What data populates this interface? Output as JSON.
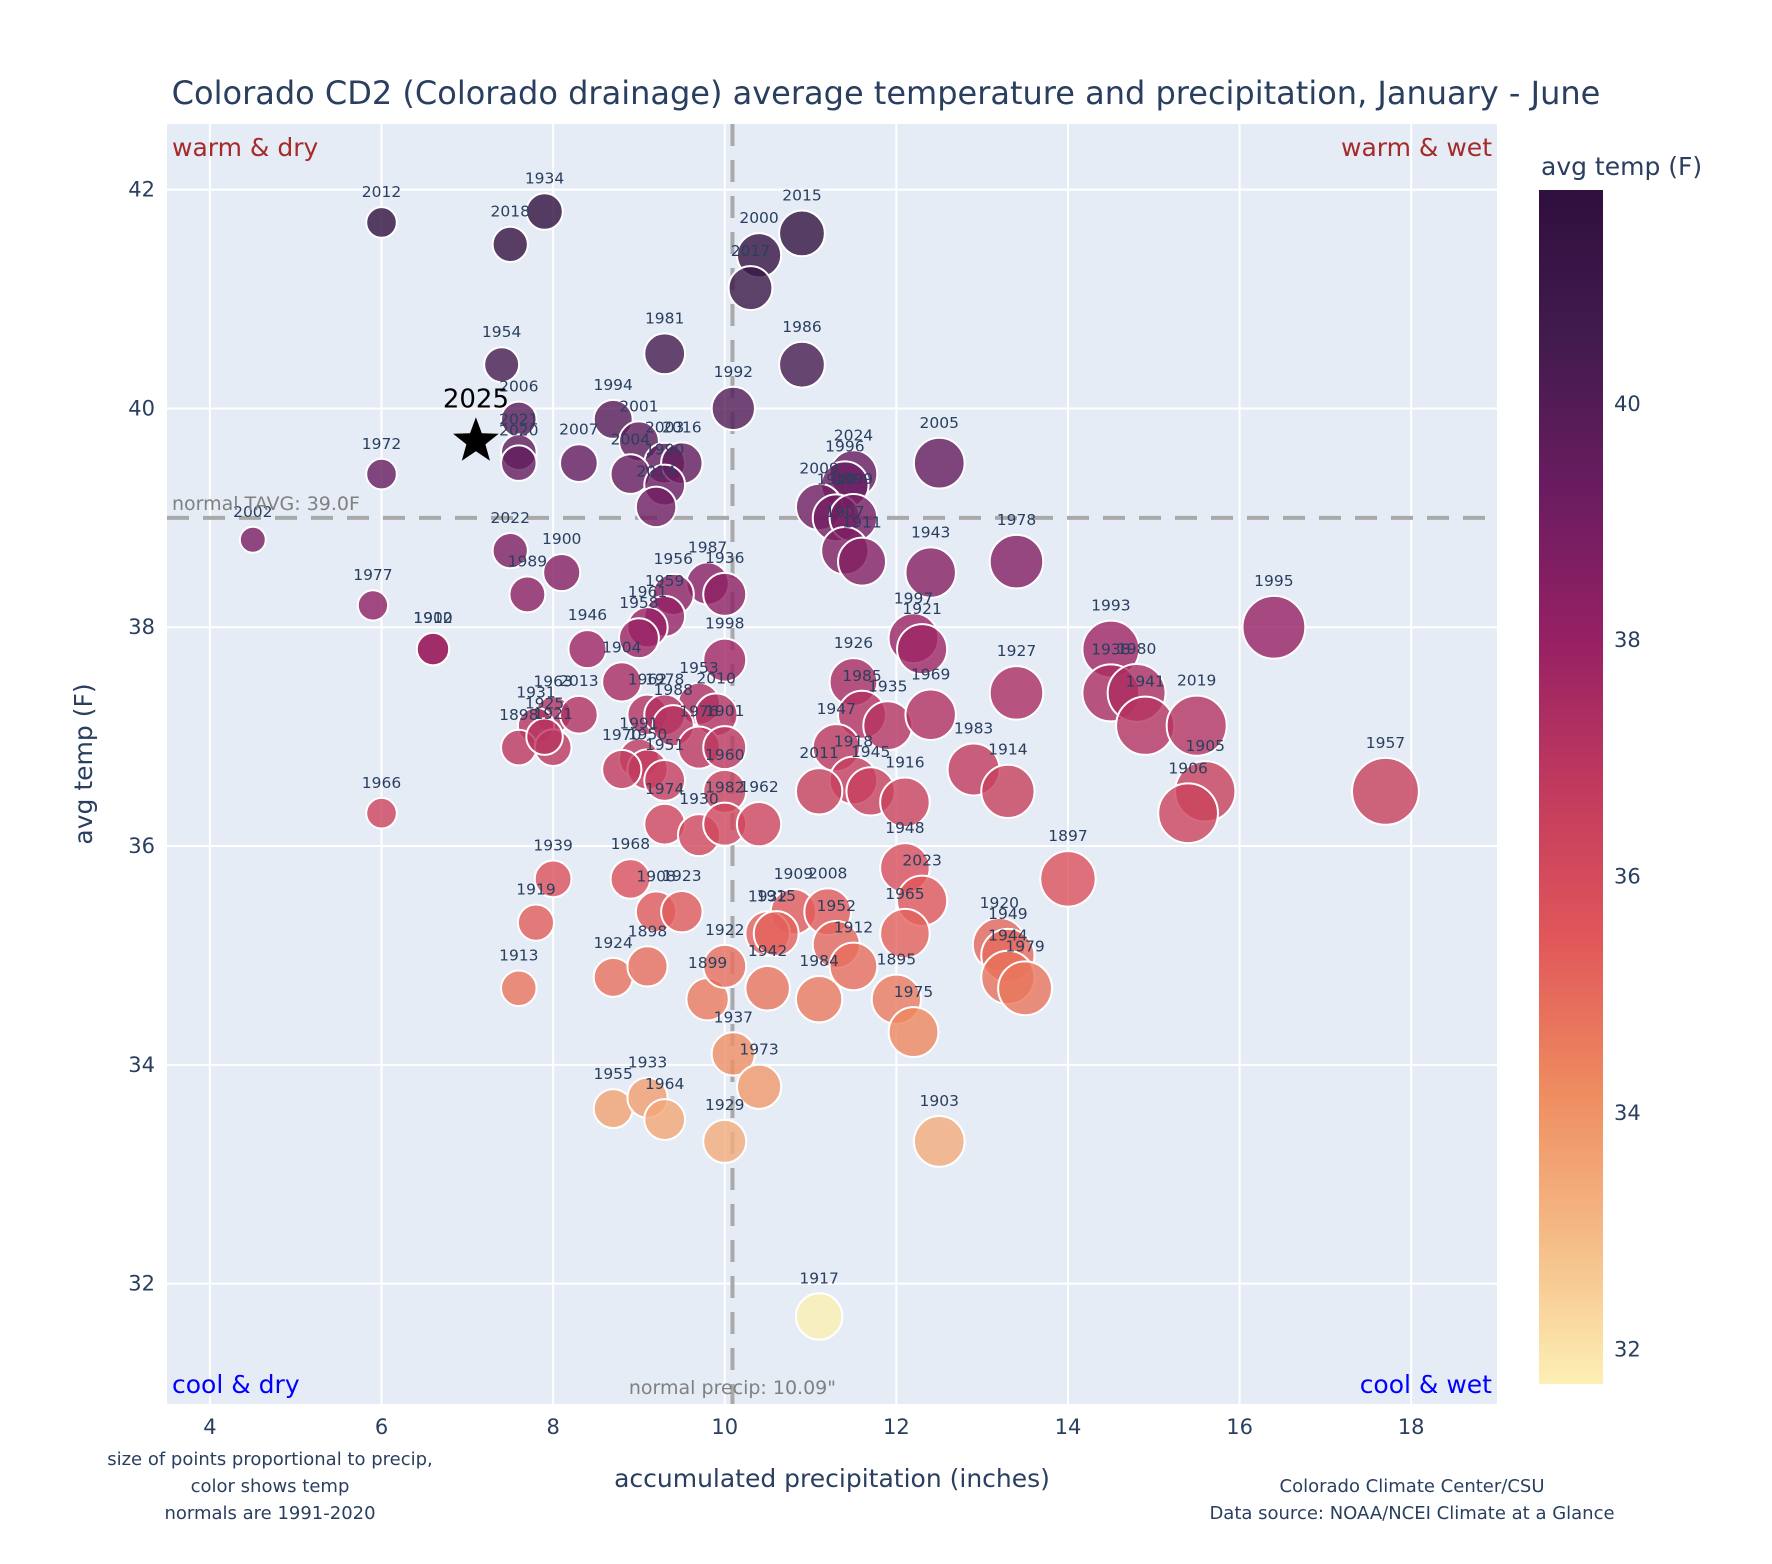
{
  "chart_data": {
    "type": "scatter",
    "title": "Colorado CD2 (Colorado drainage) average temperature and precipitation, January - June",
    "xlabel": "accumulated precipitation (inches)",
    "ylabel": "avg temp (F)",
    "xlim": [
      3.5,
      19.0
    ],
    "ylim": [
      30.9,
      42.6
    ],
    "xticks": [
      4,
      6,
      8,
      10,
      12,
      14,
      16,
      18
    ],
    "yticks": [
      32,
      34,
      36,
      38,
      40,
      42
    ],
    "grid": true,
    "colorbar": {
      "title": "avg temp (F)",
      "range": [
        31.7,
        41.8
      ],
      "ticks": [
        32,
        34,
        36,
        38,
        40
      ],
      "colorscale": [
        "#fcf0b4",
        "#f5ba85",
        "#ee8a5f",
        "#e0565a",
        "#c13a5e",
        "#962064",
        "#6a1c60",
        "#421b4e",
        "#2f0f3d"
      ],
      "placement": "right"
    },
    "normals": {
      "temp": 39.0,
      "temp_label": "normal TAVG: 39.0F",
      "precip": 10.09,
      "precip_label": "normal precip: 10.09\""
    },
    "quadrant_labels": {
      "top_left": "warm & dry",
      "top_right": "warm & wet",
      "bottom_left": "cool & dry",
      "bottom_right": "cool & wet",
      "warm_color": "#a52a2a",
      "cool_color": "#0000ff"
    },
    "highlight": {
      "year": "2025",
      "precip": 7.1,
      "temp": 39.7,
      "marker": "star"
    },
    "points": [
      {
        "year": "2012",
        "precip": 6.0,
        "temp": 41.7
      },
      {
        "year": "1934",
        "precip": 7.9,
        "temp": 41.8
      },
      {
        "year": "2018",
        "precip": 7.5,
        "temp": 41.5
      },
      {
        "year": "2015",
        "precip": 10.9,
        "temp": 41.6
      },
      {
        "year": "2000",
        "precip": 10.4,
        "temp": 41.4
      },
      {
        "year": "2017",
        "precip": 10.3,
        "temp": 41.1
      },
      {
        "year": "1981",
        "precip": 9.3,
        "temp": 40.5
      },
      {
        "year": "1986",
        "precip": 10.9,
        "temp": 40.4
      },
      {
        "year": "1954",
        "precip": 7.4,
        "temp": 40.4
      },
      {
        "year": "1992",
        "precip": 10.1,
        "temp": 40.0
      },
      {
        "year": "2006",
        "precip": 7.6,
        "temp": 39.9
      },
      {
        "year": "1994",
        "precip": 8.7,
        "temp": 39.9
      },
      {
        "year": "2021",
        "precip": 7.6,
        "temp": 39.6
      },
      {
        "year": "2020",
        "precip": 7.6,
        "temp": 39.5
      },
      {
        "year": "2001",
        "precip": 9.0,
        "temp": 39.7
      },
      {
        "year": "2007",
        "precip": 8.3,
        "temp": 39.5
      },
      {
        "year": "2003",
        "precip": 9.3,
        "temp": 39.5
      },
      {
        "year": "2016",
        "precip": 9.5,
        "temp": 39.5
      },
      {
        "year": "2004",
        "precip": 8.9,
        "temp": 39.4
      },
      {
        "year": "1990",
        "precip": 9.3,
        "temp": 39.3
      },
      {
        "year": "2014",
        "precip": 9.2,
        "temp": 39.1
      },
      {
        "year": "1972",
        "precip": 6.0,
        "temp": 39.4
      },
      {
        "year": "2002",
        "precip": 4.5,
        "temp": 38.8
      },
      {
        "year": "2005",
        "precip": 12.5,
        "temp": 39.5
      },
      {
        "year": "2024",
        "precip": 11.5,
        "temp": 39.4
      },
      {
        "year": "1996",
        "precip": 11.4,
        "temp": 39.3
      },
      {
        "year": "2009",
        "precip": 11.1,
        "temp": 39.1
      },
      {
        "year": "1940",
        "precip": 11.3,
        "temp": 39.0
      },
      {
        "year": "1999",
        "precip": 11.5,
        "temp": 39.0
      },
      {
        "year": "1907",
        "precip": 11.4,
        "temp": 38.7
      },
      {
        "year": "1911",
        "precip": 11.6,
        "temp": 38.6
      },
      {
        "year": "1943",
        "precip": 12.4,
        "temp": 38.5
      },
      {
        "year": "1978",
        "precip": 13.4,
        "temp": 38.6
      },
      {
        "year": "2022",
        "precip": 7.5,
        "temp": 38.7
      },
      {
        "year": "1900",
        "precip": 8.1,
        "temp": 38.5
      },
      {
        "year": "1989",
        "precip": 7.7,
        "temp": 38.3
      },
      {
        "year": "1977",
        "precip": 5.9,
        "temp": 38.2
      },
      {
        "year": "1902",
        "precip": 6.6,
        "temp": 37.8
      },
      {
        "year": "1910",
        "precip": 6.6,
        "temp": 37.8
      },
      {
        "year": "1987",
        "precip": 9.8,
        "temp": 38.4
      },
      {
        "year": "1936",
        "precip": 10.0,
        "temp": 38.3
      },
      {
        "year": "1956",
        "precip": 9.4,
        "temp": 38.3
      },
      {
        "year": "1959",
        "precip": 9.3,
        "temp": 38.1
      },
      {
        "year": "1961",
        "precip": 9.1,
        "temp": 38.0
      },
      {
        "year": "1958",
        "precip": 9.0,
        "temp": 37.9
      },
      {
        "year": "1946",
        "precip": 8.4,
        "temp": 37.8
      },
      {
        "year": "1998",
        "precip": 10.0,
        "temp": 37.7
      },
      {
        "year": "1904",
        "precip": 8.8,
        "temp": 37.5
      },
      {
        "year": "1953",
        "precip": 9.7,
        "temp": 37.3
      },
      {
        "year": "1962",
        "precip": 9.1,
        "temp": 37.2
      },
      {
        "year": "1978b",
        "precip": 9.3,
        "temp": 37.2
      },
      {
        "year": "1988",
        "precip": 9.4,
        "temp": 37.1
      },
      {
        "year": "2010",
        "precip": 9.9,
        "temp": 37.2
      },
      {
        "year": "1963",
        "precip": 8.0,
        "temp": 37.2
      },
      {
        "year": "2013",
        "precip": 8.3,
        "temp": 37.2
      },
      {
        "year": "1931",
        "precip": 7.8,
        "temp": 37.1
      },
      {
        "year": "1898",
        "precip": 7.6,
        "temp": 36.9
      },
      {
        "year": "1921",
        "precip": 8.0,
        "temp": 36.9
      },
      {
        "year": "1925",
        "precip": 7.9,
        "temp": 37.0
      },
      {
        "year": "1976",
        "precip": 9.7,
        "temp": 36.9
      },
      {
        "year": "1901",
        "precip": 10.0,
        "temp": 36.9
      },
      {
        "year": "1991",
        "precip": 9.0,
        "temp": 36.8
      },
      {
        "year": "1950",
        "precip": 9.1,
        "temp": 36.7
      },
      {
        "year": "1970",
        "precip": 8.8,
        "temp": 36.7
      },
      {
        "year": "1951",
        "precip": 9.3,
        "temp": 36.6
      },
      {
        "year": "1960",
        "precip": 10.0,
        "temp": 36.5
      },
      {
        "year": "1974",
        "precip": 9.3,
        "temp": 36.2
      },
      {
        "year": "1930",
        "precip": 9.7,
        "temp": 36.1
      },
      {
        "year": "1982",
        "precip": 10.0,
        "temp": 36.2
      },
      {
        "year": "1962b",
        "precip": 10.4,
        "temp": 36.2
      },
      {
        "year": "1926",
        "precip": 11.5,
        "temp": 37.5
      },
      {
        "year": "1997",
        "precip": 12.2,
        "temp": 37.9
      },
      {
        "year": "1921b",
        "precip": 12.3,
        "temp": 37.8
      },
      {
        "year": "1985",
        "precip": 11.6,
        "temp": 37.2
      },
      {
        "year": "1935",
        "precip": 11.9,
        "temp": 37.1
      },
      {
        "year": "1969",
        "precip": 12.4,
        "temp": 37.2
      },
      {
        "year": "1927",
        "precip": 13.4,
        "temp": 37.4
      },
      {
        "year": "1947",
        "precip": 11.3,
        "temp": 36.9
      },
      {
        "year": "1918",
        "precip": 11.5,
        "temp": 36.6
      },
      {
        "year": "1945",
        "precip": 11.7,
        "temp": 36.5
      },
      {
        "year": "2011",
        "precip": 11.1,
        "temp": 36.5
      },
      {
        "year": "1916",
        "precip": 12.1,
        "temp": 36.4
      },
      {
        "year": "1983",
        "precip": 12.9,
        "temp": 36.7
      },
      {
        "year": "1914",
        "precip": 13.3,
        "temp": 36.5
      },
      {
        "year": "1993",
        "precip": 14.5,
        "temp": 37.8
      },
      {
        "year": "1938",
        "precip": 14.5,
        "temp": 37.4
      },
      {
        "year": "1980",
        "precip": 14.8,
        "temp": 37.4
      },
      {
        "year": "1941",
        "precip": 14.9,
        "temp": 37.1
      },
      {
        "year": "2019",
        "precip": 15.5,
        "temp": 37.1
      },
      {
        "year": "1995",
        "precip": 16.4,
        "temp": 38.0
      },
      {
        "year": "1905",
        "precip": 15.6,
        "temp": 36.5
      },
      {
        "year": "1906",
        "precip": 15.4,
        "temp": 36.3
      },
      {
        "year": "1957",
        "precip": 17.7,
        "temp": 36.5
      },
      {
        "year": "1966",
        "precip": 6.0,
        "temp": 36.3
      },
      {
        "year": "1939",
        "precip": 8.0,
        "temp": 35.7
      },
      {
        "year": "1968",
        "precip": 8.9,
        "temp": 35.7
      },
      {
        "year": "1919",
        "precip": 7.8,
        "temp": 35.3
      },
      {
        "year": "1908",
        "precip": 9.2,
        "temp": 35.4
      },
      {
        "year": "1923",
        "precip": 9.5,
        "temp": 35.4
      },
      {
        "year": "1913",
        "precip": 7.6,
        "temp": 34.7
      },
      {
        "year": "1924",
        "precip": 8.7,
        "temp": 34.8
      },
      {
        "year": "1898b",
        "precip": 9.1,
        "temp": 34.9
      },
      {
        "year": "1899",
        "precip": 9.8,
        "temp": 34.6
      },
      {
        "year": "1922",
        "precip": 10.0,
        "temp": 34.9
      },
      {
        "year": "1948",
        "precip": 12.1,
        "temp": 35.8
      },
      {
        "year": "2023",
        "precip": 12.3,
        "temp": 35.5
      },
      {
        "year": "1909",
        "precip": 10.8,
        "temp": 35.4
      },
      {
        "year": "2008",
        "precip": 11.2,
        "temp": 35.4
      },
      {
        "year": "1932",
        "precip": 10.5,
        "temp": 35.2
      },
      {
        "year": "1915",
        "precip": 10.6,
        "temp": 35.2
      },
      {
        "year": "1952",
        "precip": 11.3,
        "temp": 35.1
      },
      {
        "year": "1965",
        "precip": 12.1,
        "temp": 35.2
      },
      {
        "year": "1942",
        "precip": 10.5,
        "temp": 34.7
      },
      {
        "year": "1984",
        "precip": 11.1,
        "temp": 34.6
      },
      {
        "year": "1912",
        "precip": 11.5,
        "temp": 34.9
      },
      {
        "year": "1895",
        "precip": 12.0,
        "temp": 34.6
      },
      {
        "year": "1975",
        "precip": 12.2,
        "temp": 34.3
      },
      {
        "year": "1920",
        "precip": 13.2,
        "temp": 35.1
      },
      {
        "year": "1949",
        "precip": 13.3,
        "temp": 35.0
      },
      {
        "year": "1944",
        "precip": 13.3,
        "temp": 34.8
      },
      {
        "year": "1979",
        "precip": 13.5,
        "temp": 34.7
      },
      {
        "year": "1897",
        "precip": 14.0,
        "temp": 35.7
      },
      {
        "year": "1937",
        "precip": 10.1,
        "temp": 34.1
      },
      {
        "year": "1973",
        "precip": 10.4,
        "temp": 33.8
      },
      {
        "year": "1955",
        "precip": 8.7,
        "temp": 33.6
      },
      {
        "year": "1933",
        "precip": 9.1,
        "temp": 33.7
      },
      {
        "year": "1964",
        "precip": 9.3,
        "temp": 33.5
      },
      {
        "year": "1929",
        "precip": 10.0,
        "temp": 33.3
      },
      {
        "year": "1903",
        "precip": 12.5,
        "temp": 33.3
      },
      {
        "year": "1917",
        "precip": 11.1,
        "temp": 31.7
      }
    ],
    "annotations": [
      "size of points proportional to precip,",
      "color shows temp",
      "normals are 1991-2020"
    ],
    "credits": [
      "Colorado Climate Center/CSU",
      "Data source: NOAA/NCEI Climate at a Glance"
    ]
  }
}
